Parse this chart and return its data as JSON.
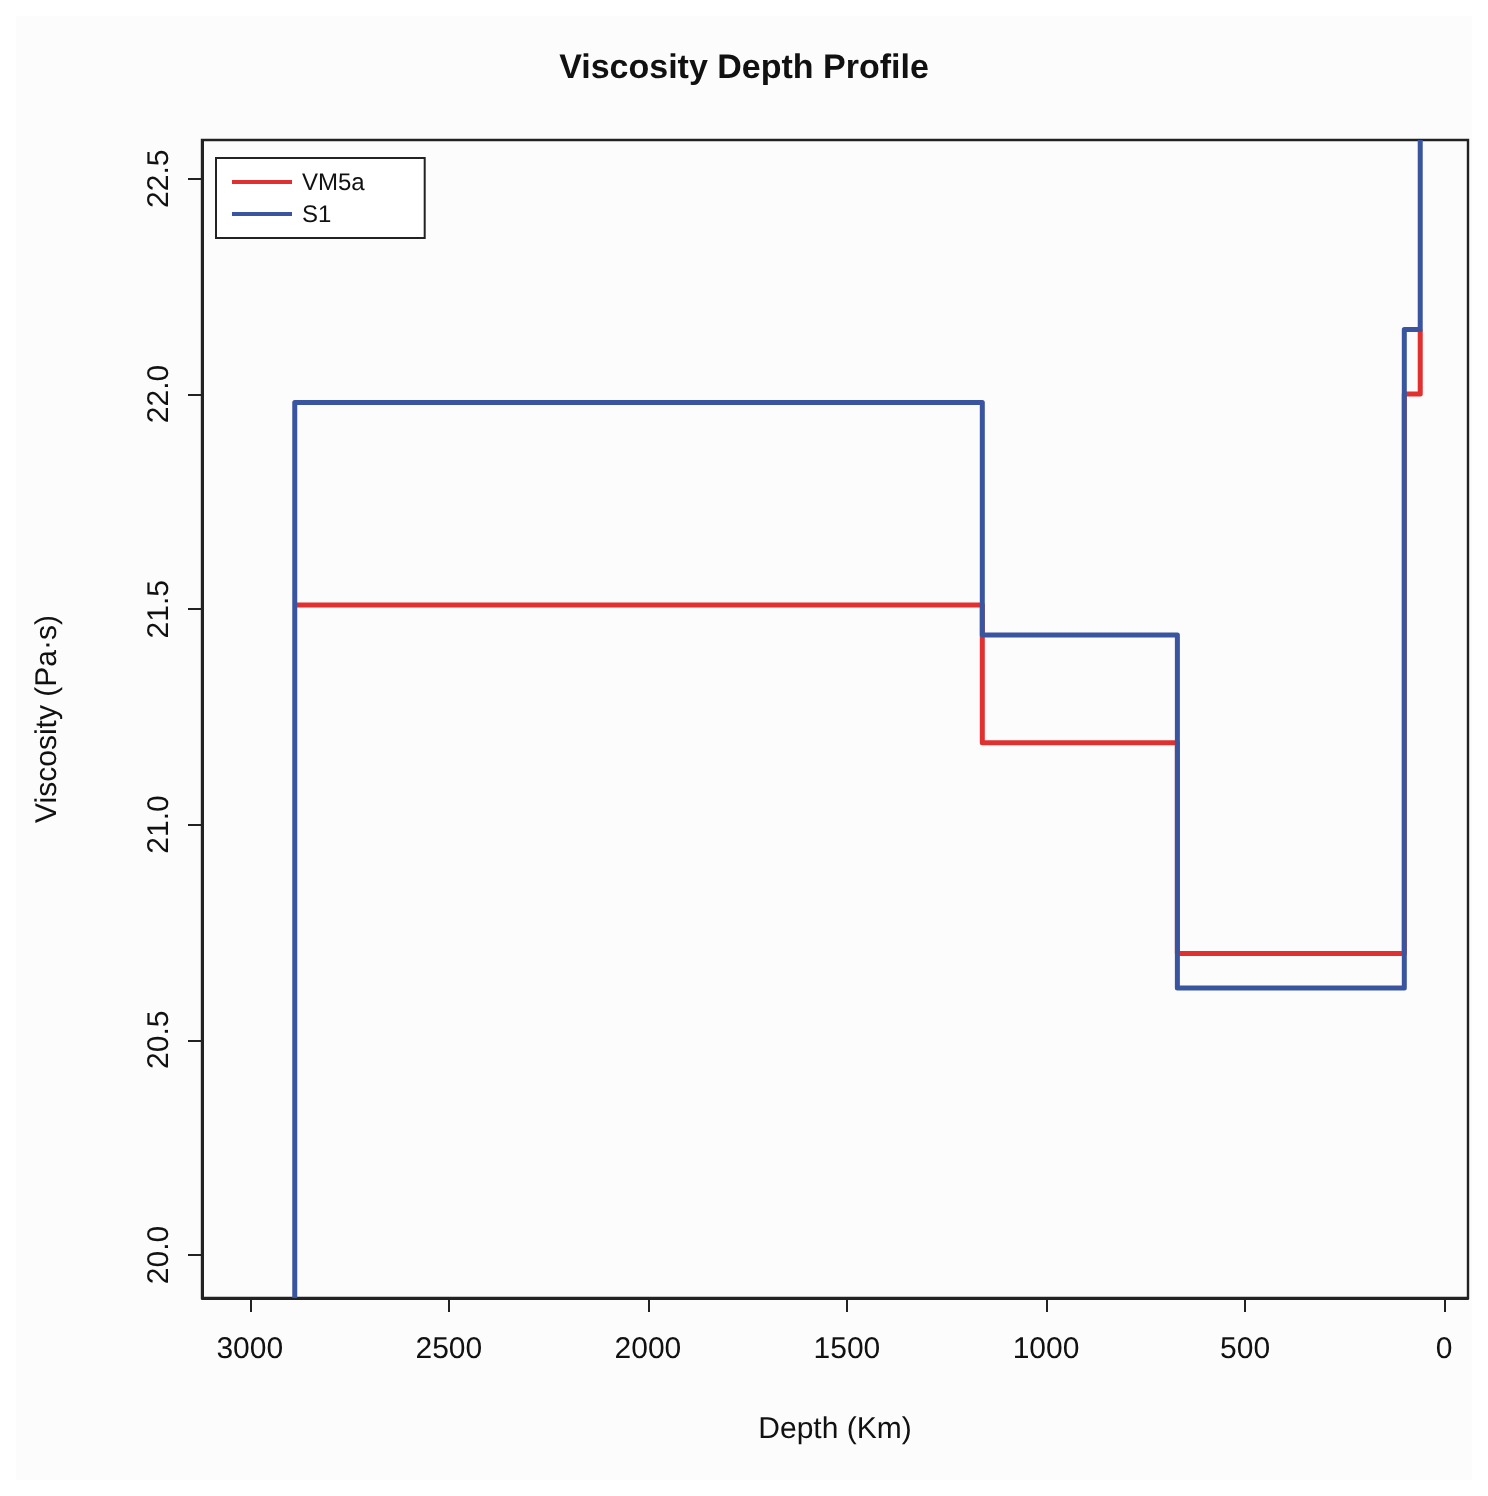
{
  "chart_data": {
    "type": "step",
    "title": "Viscosity Depth Profile",
    "xlabel": "Depth (Km)",
    "ylabel": "Viscosity (Pa·s)",
    "x": [
      2887,
      2887,
      1160,
      670,
      100,
      60
    ],
    "series": [
      {
        "name": "VM5a",
        "color": "#e03030",
        "values": [
          null,
          21.51,
          21.19,
          20.7,
          22.0,
          22.15
        ]
      },
      {
        "name": "S1",
        "color": "#3a55a0",
        "values": [
          19.9,
          21.98,
          21.44,
          20.62,
          22.15,
          22.59
        ]
      }
    ],
    "xlim": [
      3120,
      -60
    ],
    "xticks": [
      3000,
      2500,
      2000,
      1500,
      1000,
      500,
      0
    ],
    "ylim": [
      19.9,
      22.59
    ],
    "yticks": [
      {
        "value": 20,
        "label": "20.0"
      },
      {
        "value": 20.5,
        "label": "20.5"
      },
      {
        "value": 21,
        "label": "21.0"
      },
      {
        "value": 21.5,
        "label": "21.5"
      },
      {
        "value": 22,
        "label": "22.0"
      },
      {
        "value": 22.5,
        "label": "22.5"
      }
    ],
    "grid": false,
    "legend": "top left",
    "marker": "none",
    "line_style": "solid"
  }
}
